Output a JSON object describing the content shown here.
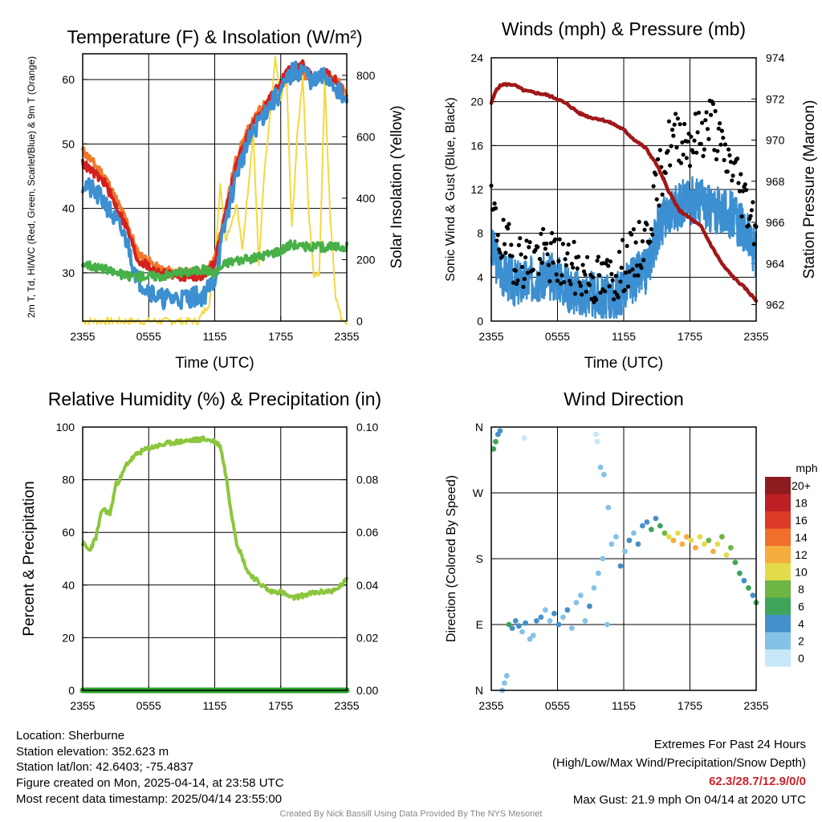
{
  "footer": {
    "location": "Location: Sherburne",
    "elevation": "Station elevation: 352.623 m",
    "latlon": "Station lat/lon: 42.6403; -75.4837",
    "created": "Figure created on Mon, 2025-04-14, at 23:58 UTC",
    "recent": "Most recent data timestamp: 2025/04/14 23:55:00",
    "extremes_title": "Extremes For Past 24 Hours",
    "extremes_sub": "(High/Low/Max Wind/Precipitation/Snow Depth)",
    "extremes_values": "62.3/28.7/12.9/0/0",
    "max_gust": "Max Gust: 21.9 mph On 04/14 at 2020 UTC",
    "credit": "Created By Nick Bassill Using Data Provided By The NYS Mesonet"
  },
  "colors": {
    "red": "#d42020",
    "orange": "#f0782a",
    "green": "#48b048",
    "blue": "#3c8fd0",
    "yellow": "#f5d840",
    "maroon": "#a01818",
    "black": "#000000",
    "rh_green": "#8cc63e",
    "precip_green": "#2ca02c",
    "extremes_red": "#c8242a"
  },
  "chart_data": [
    {
      "id": "temp",
      "type": "line",
      "title": "Temperature (F) & Insolation (W/m²)",
      "xlabel": "Time (UTC)",
      "ylabel_left": "2m T, Td, HI/WC (Red, Green, Scarlet/Blue) & 9m T (Orange)",
      "ylabel_right": "Solar Insolation (Yellow)",
      "x_ticks": [
        "2355",
        "0555",
        "1155",
        "1755",
        "2355"
      ],
      "ylim": [
        22.5,
        64
      ],
      "y_ticks": [
        30,
        40,
        50,
        60
      ],
      "y2lim": [
        0,
        870
      ],
      "y2_ticks": [
        0,
        200,
        400,
        600,
        800
      ],
      "x_hours": [
        0,
        2,
        4,
        5,
        7,
        9,
        11,
        12,
        13,
        14,
        15,
        16,
        17,
        18,
        19,
        20,
        21,
        22,
        23,
        24
      ],
      "series": [
        {
          "color": "orange",
          "values": [
            49,
            45,
            38,
            33,
            30.5,
            30,
            30,
            32,
            40,
            48,
            52,
            55,
            57,
            59,
            61.5,
            61,
            60,
            61,
            60,
            58
          ]
        },
        {
          "color": "red",
          "values": [
            47,
            44,
            37,
            32,
            30,
            29.5,
            29.5,
            31.5,
            39.5,
            47,
            51.5,
            54.5,
            57,
            59.5,
            62,
            62.3,
            60,
            61,
            60,
            57
          ]
        },
        {
          "color": "blue",
          "values": [
            44,
            41,
            35,
            29,
            26,
            26,
            26.5,
            29,
            38,
            45.5,
            50,
            53.5,
            56,
            58,
            61,
            61.5,
            59.5,
            60.5,
            59,
            56
          ]
        },
        {
          "color": "green",
          "values": [
            31.5,
            30.5,
            29.5,
            29.5,
            29.5,
            30,
            30.5,
            30,
            31.5,
            32,
            32,
            32.5,
            33,
            33.5,
            34.5,
            34,
            34,
            34,
            34,
            34
          ]
        }
      ],
      "insolation": {
        "x_hours": [
          0,
          10.5,
          11.5,
          12,
          12.5,
          13,
          13.5,
          14,
          14.5,
          15,
          15.5,
          16,
          16.5,
          17,
          17.5,
          18,
          18.5,
          19,
          19.5,
          20,
          20.5,
          21,
          21.5,
          22,
          22.5,
          23,
          23.5,
          24
        ],
        "values": [
          0,
          0,
          60,
          180,
          450,
          270,
          320,
          380,
          230,
          420,
          620,
          180,
          480,
          650,
          850,
          720,
          820,
          300,
          600,
          800,
          380,
          150,
          150,
          780,
          340,
          80,
          10,
          0
        ]
      }
    },
    {
      "id": "wind",
      "type": "scatter",
      "title": "Winds (mph) & Pressure (mb)",
      "xlabel": "Time (UTC)",
      "ylabel_left": "Sonic Wind & Gust (Blue, Black)",
      "ylabel_right": "Station Pressure (Maroon)",
      "x_ticks": [
        "2355",
        "0555",
        "1155",
        "1755",
        "2355"
      ],
      "ylim": [
        0,
        24
      ],
      "y_ticks": [
        0,
        4,
        8,
        12,
        16,
        20,
        24
      ],
      "y2lim": [
        961.2,
        974
      ],
      "y2_ticks": [
        962,
        964,
        966,
        968,
        970,
        972,
        974
      ],
      "wind_mean": {
        "x_hours": [
          0,
          1,
          2,
          3,
          4,
          5,
          6,
          7,
          8,
          9,
          10,
          11,
          12,
          13,
          14,
          15,
          16,
          17,
          18,
          19,
          20,
          21,
          22,
          23,
          24
        ],
        "values": [
          6.5,
          4.5,
          3.5,
          3.5,
          4,
          4,
          4,
          3,
          2.5,
          2.5,
          2,
          2,
          3,
          4,
          4.5,
          8,
          10,
          10.5,
          11,
          11,
          10,
          10,
          9.5,
          8,
          6
        ]
      },
      "gust": {
        "x_hours": [
          0,
          1,
          2,
          3,
          4,
          5,
          6,
          7,
          8,
          9,
          10,
          11,
          12,
          13,
          14,
          15,
          16,
          17,
          18,
          19,
          20,
          21,
          22,
          23,
          24
        ],
        "values": [
          10,
          7,
          6,
          5.5,
          6,
          6,
          5.5,
          5,
          4.5,
          4,
          3.5,
          4,
          5,
          6,
          7.5,
          12,
          16,
          17,
          16.5,
          17,
          18.5,
          15,
          14,
          11,
          9
        ]
      },
      "pressure": {
        "x_hours": [
          0,
          0.5,
          1,
          2,
          3,
          4,
          5,
          6,
          7,
          8,
          9,
          10,
          11,
          12,
          13,
          14,
          15,
          16,
          17,
          18,
          19,
          20,
          21,
          22,
          23,
          24
        ],
        "values": [
          971.8,
          972.5,
          972.7,
          972.7,
          972.4,
          972.3,
          972.2,
          972,
          971.7,
          971.3,
          971.1,
          971,
          970.8,
          970.5,
          970,
          969.6,
          968.8,
          967.6,
          966.6,
          966.2,
          965.8,
          964.8,
          963.9,
          963.3,
          962.8,
          962.2
        ]
      }
    },
    {
      "id": "rh",
      "type": "line",
      "title": "Relative Humidity (%) & Precipitation (in)",
      "ylabel_left": "Percent & Precipitation",
      "x_ticks": [
        "2355",
        "0555",
        "1155",
        "1755",
        "2355"
      ],
      "ylim": [
        0,
        100
      ],
      "y_ticks": [
        0,
        20,
        40,
        60,
        80,
        100
      ],
      "y2lim": [
        0,
        0.1
      ],
      "y2_ticks": [
        "0.00",
        "0.02",
        "0.04",
        "0.06",
        "0.08",
        "0.10"
      ],
      "rh": {
        "x_hours": [
          0,
          0.6,
          1.2,
          1.8,
          2.5,
          3,
          3.5,
          4,
          5,
          6,
          7,
          8,
          9,
          10,
          11,
          12,
          12.5,
          13,
          13.5,
          14,
          15,
          16,
          17,
          18,
          19,
          20,
          21,
          22,
          23,
          24
        ],
        "values": [
          56,
          53,
          58,
          69,
          67,
          78,
          81,
          86,
          90,
          92,
          93,
          94,
          94.5,
          95,
          95.5,
          94.5,
          93,
          82,
          68,
          56,
          45,
          41,
          37.5,
          37.5,
          35,
          36,
          37,
          37.5,
          38,
          42
        ]
      },
      "precip": {
        "x_hours": [
          0,
          24
        ],
        "values": [
          0,
          0
        ]
      }
    },
    {
      "id": "wdir",
      "type": "scatter",
      "title": "Wind Direction",
      "ylabel_left": "Direction (Colored By Speed)",
      "x_ticks": [
        "2355",
        "0555",
        "1155",
        "1755",
        "2355"
      ],
      "y_ticks": [
        "N",
        "E",
        "S",
        "W",
        "N"
      ],
      "ylim": [
        0,
        360
      ],
      "colorbar": {
        "title": "mph",
        "labels": [
          "0",
          "2",
          "4",
          "6",
          "8",
          "10",
          "12",
          "14",
          "16",
          "18",
          "20+"
        ],
        "colors": [
          "#c6e8f8",
          "#85c2e8",
          "#4590cb",
          "#3da45a",
          "#6db544",
          "#e3dc4a",
          "#f6ad3f",
          "#ef6f2b",
          "#dd3a27",
          "#bd1f25",
          "#8e1b1d"
        ]
      },
      "points": [
        [
          0.2,
          330,
          6
        ],
        [
          0.4,
          340,
          6
        ],
        [
          0.6,
          350,
          5
        ],
        [
          0.8,
          355,
          4
        ],
        [
          1.0,
          0,
          3
        ],
        [
          1.2,
          10,
          2
        ],
        [
          1.4,
          20,
          3
        ],
        [
          1.6,
          90,
          6
        ],
        [
          1.9,
          85,
          5
        ],
        [
          2.2,
          95,
          4
        ],
        [
          2.5,
          88,
          4
        ],
        [
          2.8,
          80,
          3
        ],
        [
          3.1,
          92,
          5
        ],
        [
          3.5,
          70,
          2
        ],
        [
          3.8,
          75,
          3
        ],
        [
          4.1,
          95,
          4
        ],
        [
          4.5,
          100,
          4
        ],
        [
          4.9,
          110,
          3
        ],
        [
          5.3,
          95,
          2
        ],
        [
          5.7,
          105,
          4
        ],
        [
          6.1,
          90,
          5
        ],
        [
          6.5,
          100,
          3
        ],
        [
          6.9,
          110,
          4
        ],
        [
          7.3,
          85,
          3
        ],
        [
          7.7,
          120,
          2
        ],
        [
          8.1,
          130,
          3
        ],
        [
          8.5,
          95,
          2
        ],
        [
          8.9,
          115,
          4
        ],
        [
          9.3,
          140,
          3
        ],
        [
          9.7,
          160,
          2
        ],
        [
          10.1,
          180,
          3
        ],
        [
          10.5,
          90,
          2
        ],
        [
          10.9,
          200,
          3
        ],
        [
          11.3,
          210,
          2
        ],
        [
          11.7,
          170,
          4
        ],
        [
          12.1,
          190,
          3
        ],
        [
          12.5,
          205,
          4
        ],
        [
          12.9,
          215,
          3
        ],
        [
          13.3,
          200,
          4
        ],
        [
          13.7,
          225,
          4
        ],
        [
          14.1,
          230,
          5
        ],
        [
          14.5,
          220,
          6
        ],
        [
          14.9,
          235,
          5
        ],
        [
          15.3,
          225,
          7
        ],
        [
          15.7,
          215,
          9
        ],
        [
          16.1,
          210,
          11
        ],
        [
          16.5,
          205,
          12
        ],
        [
          16.9,
          215,
          10
        ],
        [
          17.3,
          200,
          12
        ],
        [
          17.7,
          210,
          13
        ],
        [
          18.1,
          205,
          11
        ],
        [
          18.5,
          195,
          12
        ],
        [
          18.9,
          210,
          10
        ],
        [
          19.3,
          200,
          11
        ],
        [
          19.7,
          205,
          9
        ],
        [
          20.1,
          190,
          12
        ],
        [
          20.5,
          200,
          10
        ],
        [
          20.9,
          210,
          8
        ],
        [
          21.3,
          185,
          11
        ],
        [
          21.7,
          195,
          9
        ],
        [
          22.1,
          175,
          7
        ],
        [
          22.5,
          160,
          6
        ],
        [
          22.9,
          150,
          5
        ],
        [
          23.3,
          140,
          6
        ],
        [
          23.7,
          130,
          5
        ],
        [
          24.0,
          120,
          6
        ],
        [
          9.5,
          350,
          1
        ],
        [
          9.6,
          340,
          1
        ],
        [
          9.9,
          305,
          2
        ],
        [
          10.2,
          295,
          2
        ],
        [
          10.6,
          250,
          2
        ],
        [
          3.0,
          345,
          1
        ]
      ]
    }
  ]
}
